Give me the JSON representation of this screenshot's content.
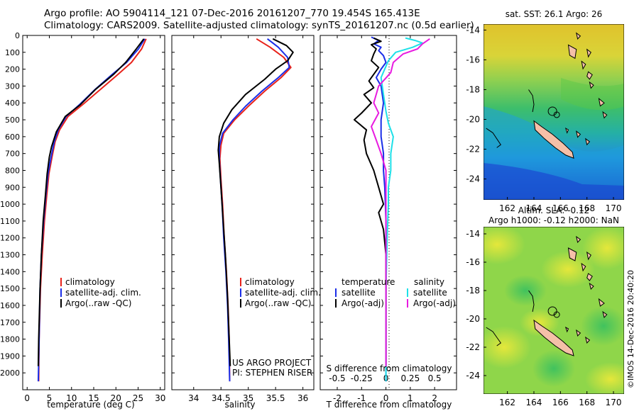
{
  "header": {
    "line1": "Argo profile: AO 5904114_121 07-Dec-2016 20161207_770 19.454S 165.413E",
    "line2": "Climatology: CARS2009. Satellite-adjusted climatology: synTS_20161207.nc (0.5d earlier)"
  },
  "colors": {
    "climatology": "#e8231b",
    "satellite_adj": "#1b2ee8",
    "argo": "#000000",
    "satellite_s": "#1b2ee8",
    "satellite_t": "#1ee0e8",
    "argo_s": "#000000",
    "argo_t": "#e81be0"
  },
  "legend": {
    "climatology": "climatology",
    "satellite_adj": "satellite-adj. clim.",
    "argo": "Argo(..raw -QC)",
    "s_title": "temperature",
    "t_title": "salinity",
    "satellite": "satellite",
    "argo_adj": "Argo(-adj)"
  },
  "credits": {
    "project": "US ARGO PROJECT",
    "pi": "PI: STEPHEN RISER",
    "imos": "©IMOS 14-Dec-2016 20:40:20"
  },
  "maps": {
    "sst_title": "sat. SST: 26.1  Argo: 26",
    "sla_title1": "Altim. SLA: -0.12",
    "sla_title2": "Argo h1000: -0.12  h2000: NaN",
    "lon_ticks": [
      "162",
      "164",
      "166",
      "168",
      "170"
    ],
    "lat_ticks": [
      "-14",
      "-16",
      "-18",
      "-20",
      "-22",
      "-24"
    ]
  },
  "chart_data": [
    {
      "type": "line",
      "id": "temperature",
      "xlabel": "temperature (deg C)",
      "ylim": [
        2100,
        0
      ],
      "xlim": [
        -1,
        31
      ],
      "xticks": [
        0,
        5,
        10,
        15,
        20,
        25,
        30
      ],
      "yticks": [
        0,
        100,
        200,
        300,
        400,
        500,
        600,
        700,
        800,
        900,
        1000,
        1100,
        1200,
        1300,
        1400,
        1500,
        1600,
        1700,
        1800,
        1900,
        2000
      ],
      "series": [
        {
          "name": "climatology",
          "color_key": "climatology",
          "points": [
            [
              26.8,
              20
            ],
            [
              25.8,
              80
            ],
            [
              23.5,
              160
            ],
            [
              20.5,
              230
            ],
            [
              16.5,
              320
            ],
            [
              12.5,
              410
            ],
            [
              9.2,
              480
            ],
            [
              7.3,
              560
            ],
            [
              6.3,
              630
            ],
            [
              5.6,
              720
            ],
            [
              4.9,
              820
            ],
            [
              4.4,
              950
            ],
            [
              3.9,
              1100
            ],
            [
              3.4,
              1300
            ],
            [
              3.0,
              1500
            ],
            [
              2.7,
              1800
            ],
            [
              2.6,
              2050
            ]
          ]
        },
        {
          "name": "satellite-adj. clim.",
          "color_key": "satellite_adj",
          "points": [
            [
              26.5,
              20
            ],
            [
              25.1,
              80
            ],
            [
              22.4,
              160
            ],
            [
              19.2,
              230
            ],
            [
              15.3,
              320
            ],
            [
              11.8,
              410
            ],
            [
              8.8,
              480
            ],
            [
              7.0,
              560
            ],
            [
              6.1,
              630
            ],
            [
              5.4,
              720
            ],
            [
              4.7,
              820
            ],
            [
              4.2,
              950
            ],
            [
              3.7,
              1100
            ],
            [
              3.2,
              1300
            ],
            [
              2.9,
              1500
            ],
            [
              2.7,
              1800
            ],
            [
              2.5,
              2050
            ]
          ]
        },
        {
          "name": "Argo(..raw -QC)",
          "color_key": "argo",
          "points": [
            [
              26.3,
              20
            ],
            [
              24.6,
              80
            ],
            [
              22.2,
              160
            ],
            [
              19.5,
              230
            ],
            [
              15.4,
              320
            ],
            [
              12.0,
              410
            ],
            [
              8.6,
              480
            ],
            [
              6.6,
              570
            ],
            [
              5.5,
              660
            ],
            [
              5.0,
              720
            ],
            [
              4.5,
              820
            ],
            [
              4.1,
              950
            ],
            [
              3.6,
              1100
            ],
            [
              3.2,
              1300
            ],
            [
              2.9,
              1500
            ],
            [
              2.6,
              1800
            ],
            [
              2.5,
              1960
            ]
          ]
        }
      ]
    },
    {
      "type": "line",
      "id": "salinity",
      "xlabel": "salinity",
      "ylim": [
        2100,
        0
      ],
      "xlim": [
        33.6,
        36.2
      ],
      "xticks": [
        34,
        34.5,
        35,
        35.5,
        36
      ],
      "series": [
        {
          "name": "climatology",
          "color_key": "climatology",
          "points": [
            [
              35.15,
              20
            ],
            [
              35.4,
              70
            ],
            [
              35.65,
              130
            ],
            [
              35.78,
              190
            ],
            [
              35.6,
              250
            ],
            [
              35.3,
              330
            ],
            [
              35.0,
              420
            ],
            [
              34.75,
              500
            ],
            [
              34.55,
              580
            ],
            [
              34.5,
              650
            ],
            [
              34.48,
              730
            ],
            [
              34.5,
              850
            ],
            [
              34.53,
              1000
            ],
            [
              34.56,
              1200
            ],
            [
              34.6,
              1400
            ],
            [
              34.63,
              1600
            ],
            [
              34.65,
              1800
            ],
            [
              34.66,
              2050
            ]
          ]
        },
        {
          "name": "satellite-adj. clim.",
          "color_key": "satellite_adj",
          "points": [
            [
              35.35,
              20
            ],
            [
              35.55,
              70
            ],
            [
              35.72,
              130
            ],
            [
              35.75,
              190
            ],
            [
              35.55,
              250
            ],
            [
              35.25,
              330
            ],
            [
              34.95,
              420
            ],
            [
              34.72,
              500
            ],
            [
              34.53,
              580
            ],
            [
              34.47,
              660
            ],
            [
              34.47,
              740
            ],
            [
              34.49,
              850
            ],
            [
              34.52,
              1000
            ],
            [
              34.55,
              1200
            ],
            [
              34.59,
              1400
            ],
            [
              34.62,
              1600
            ],
            [
              34.64,
              1800
            ],
            [
              34.66,
              2050
            ]
          ]
        },
        {
          "name": "Argo(..raw -QC)",
          "color_key": "argo",
          "points": [
            [
              35.45,
              20
            ],
            [
              35.7,
              60
            ],
            [
              35.82,
              100
            ],
            [
              35.72,
              150
            ],
            [
              35.5,
              200
            ],
            [
              35.3,
              260
            ],
            [
              34.95,
              350
            ],
            [
              34.7,
              440
            ],
            [
              34.55,
              520
            ],
            [
              34.47,
              600
            ],
            [
              34.45,
              680
            ],
            [
              34.47,
              760
            ],
            [
              34.5,
              900
            ],
            [
              34.54,
              1100
            ],
            [
              34.58,
              1300
            ],
            [
              34.62,
              1550
            ],
            [
              34.65,
              1800
            ],
            [
              34.67,
              1960
            ]
          ]
        }
      ]
    },
    {
      "type": "line",
      "id": "differences",
      "xlabel": "T difference from climatology",
      "xlabel2": "S difference from climatology",
      "ylim": [
        2100,
        0
      ],
      "xlim": [
        -2.7,
        2.9
      ],
      "xticks": [
        -2,
        -1,
        0,
        1,
        2
      ],
      "s_tick_labels": [
        "-0.5",
        "-0.25",
        "0",
        "0.25",
        "0.5"
      ],
      "s_tick_values": [
        -0.5,
        -0.25,
        0,
        0.25,
        0.5
      ],
      "series": [
        {
          "name": "satellite",
          "group": "temperature",
          "color_key": "satellite_s",
          "points": [
            [
              -0.6,
              10
            ],
            [
              -0.3,
              30
            ],
            [
              -0.5,
              50
            ],
            [
              -0.2,
              70
            ],
            [
              -0.3,
              90
            ],
            [
              -0.1,
              120
            ],
            [
              0.0,
              160
            ],
            [
              -0.2,
              200
            ],
            [
              -0.4,
              250
            ],
            [
              -0.2,
              300
            ],
            [
              -0.1,
              400
            ],
            [
              -0.2,
              500
            ],
            [
              -0.2,
              600
            ],
            [
              -0.1,
              700
            ],
            [
              -0.1,
              800
            ],
            [
              -0.05,
              900
            ],
            [
              0.0,
              1100
            ],
            [
              0.0,
              1500
            ],
            [
              0.0,
              2050
            ]
          ]
        },
        {
          "name": "Argo(-adj)",
          "group": "temperature",
          "color_key": "argo_s",
          "points": [
            [
              -0.5,
              15
            ],
            [
              -0.2,
              35
            ],
            [
              -0.6,
              55
            ],
            [
              -0.4,
              80
            ],
            [
              -0.5,
              110
            ],
            [
              -0.6,
              150
            ],
            [
              -0.3,
              190
            ],
            [
              -0.5,
              230
            ],
            [
              -0.7,
              270
            ],
            [
              -0.5,
              310
            ],
            [
              -0.9,
              350
            ],
            [
              -0.6,
              400
            ],
            [
              -1.0,
              460
            ],
            [
              -1.3,
              500
            ],
            [
              -0.8,
              560
            ],
            [
              -0.9,
              620
            ],
            [
              -0.8,
              700
            ],
            [
              -0.5,
              800
            ],
            [
              -0.3,
              900
            ],
            [
              -0.1,
              1000
            ],
            [
              -0.3,
              1050
            ],
            [
              -0.1,
              1150
            ],
            [
              0.0,
              1300
            ],
            [
              0.0,
              1500
            ],
            [
              0.0,
              1960
            ]
          ]
        },
        {
          "name": "satellite",
          "group": "salinity",
          "color_key": "satellite_t",
          "points": [
            [
              0.8,
              15
            ],
            [
              1.2,
              30
            ],
            [
              1.5,
              45
            ],
            [
              1.1,
              70
            ],
            [
              0.4,
              100
            ],
            [
              0.1,
              150
            ],
            [
              -0.2,
              250
            ],
            [
              -0.1,
              350
            ],
            [
              0.0,
              450
            ],
            [
              0.1,
              520
            ],
            [
              0.3,
              600
            ],
            [
              0.2,
              700
            ],
            [
              0.2,
              800
            ],
            [
              0.1,
              900
            ],
            [
              0.1,
              1000
            ],
            [
              0.05,
              1200
            ],
            [
              0.0,
              1500
            ],
            [
              0.0,
              2050
            ]
          ]
        },
        {
          "name": "Argo(-adj)",
          "group": "salinity",
          "color_key": "argo_t",
          "points": [
            [
              1.8,
              20
            ],
            [
              1.5,
              50
            ],
            [
              1.3,
              80
            ],
            [
              0.7,
              110
            ],
            [
              0.3,
              160
            ],
            [
              0.2,
              220
            ],
            [
              -0.3,
              300
            ],
            [
              -0.5,
              400
            ],
            [
              -0.3,
              460
            ],
            [
              -0.6,
              540
            ],
            [
              -0.4,
              620
            ],
            [
              -0.2,
              700
            ],
            [
              0.0,
              800
            ],
            [
              0.0,
              900
            ],
            [
              0.0,
              1100
            ],
            [
              0.0,
              1500
            ],
            [
              0.0,
              1960
            ]
          ]
        }
      ]
    }
  ]
}
